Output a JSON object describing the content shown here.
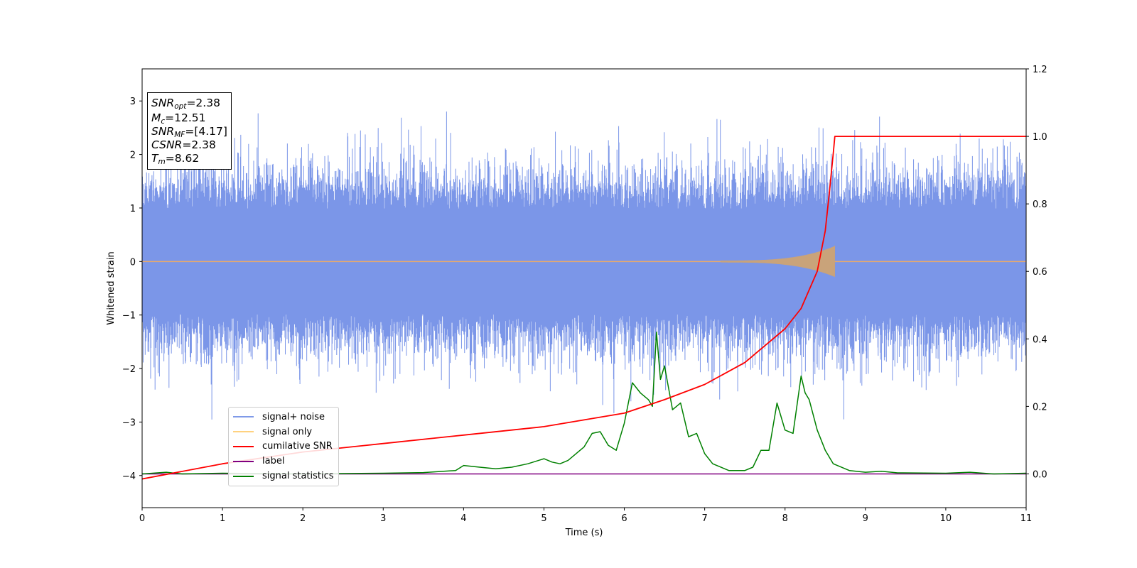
{
  "chart_data": {
    "type": "line",
    "xlabel": "Time (s)",
    "ylabel": "Whitened strain",
    "xlim": [
      0,
      11
    ],
    "ylim_left": [
      -4.6,
      3.6
    ],
    "ylim_right": [
      -0.1,
      1.2
    ],
    "x_ticks": [
      "0",
      "1",
      "2",
      "3",
      "4",
      "5",
      "6",
      "7",
      "8",
      "9",
      "10",
      "11"
    ],
    "y_ticks_left": [
      "3",
      "2",
      "1",
      "0",
      "−1",
      "−2",
      "−3",
      "−4"
    ],
    "y_ticks_right": [
      "1.2",
      "1.0",
      "0.8",
      "0.6",
      "0.4",
      "0.2",
      "0.0"
    ],
    "annotations": {
      "snr_opt": "=2.38",
      "mc": "=12.51",
      "snr_mf": "=[4.17]",
      "csnr": "=2.38",
      "tm": "=8.62"
    },
    "series": [
      {
        "name": "signal+ noise",
        "axis": "left",
        "color": "#4169e1",
        "description_type": "noise",
        "typical_amplitude": 1.6,
        "peak_max": 3.1,
        "peak_min": -3.25
      },
      {
        "name": "signal only",
        "axis": "left",
        "color": "#ffa500",
        "chirp_end": 8.62,
        "max_amplitude": 0.3
      },
      {
        "name": "cumilative SNR",
        "axis": "right",
        "color": "#ff0000",
        "x": [
          0,
          1,
          2,
          3,
          4,
          5,
          5.5,
          6,
          6.5,
          7,
          7.5,
          8,
          8.2,
          8.4,
          8.5,
          8.55,
          8.6,
          8.62,
          9,
          10,
          11
        ],
        "values": [
          -0.015,
          0.03,
          0.065,
          0.09,
          0.115,
          0.14,
          0.16,
          0.18,
          0.22,
          0.265,
          0.33,
          0.43,
          0.49,
          0.6,
          0.72,
          0.83,
          0.95,
          1.0,
          1.0,
          1.0,
          1.0
        ]
      },
      {
        "name": "label",
        "axis": "right",
        "color": "#800080",
        "x": [
          0,
          11
        ],
        "values": [
          0,
          0
        ]
      },
      {
        "name": "signal statistics",
        "axis": "right",
        "color": "#008000",
        "x": [
          0,
          0.3,
          0.5,
          1,
          2,
          3,
          3.5,
          3.9,
          4.0,
          4.2,
          4.4,
          4.6,
          4.8,
          5.0,
          5.1,
          5.2,
          5.3,
          5.4,
          5.5,
          5.6,
          5.7,
          5.8,
          5.9,
          6.0,
          6.1,
          6.2,
          6.3,
          6.35,
          6.4,
          6.45,
          6.5,
          6.6,
          6.7,
          6.8,
          6.9,
          7.0,
          7.1,
          7.3,
          7.5,
          7.6,
          7.7,
          7.8,
          7.9,
          8.0,
          8.1,
          8.2,
          8.25,
          8.3,
          8.4,
          8.5,
          8.6,
          8.8,
          9.0,
          9.2,
          9.4,
          10,
          10.3,
          10.6,
          11
        ],
        "values": [
          0,
          0.005,
          0.0,
          0.002,
          0.0,
          0.002,
          0.004,
          0.01,
          0.025,
          0.02,
          0.015,
          0.02,
          0.03,
          0.045,
          0.035,
          0.03,
          0.04,
          0.06,
          0.08,
          0.12,
          0.125,
          0.085,
          0.07,
          0.15,
          0.27,
          0.24,
          0.22,
          0.2,
          0.42,
          0.28,
          0.32,
          0.19,
          0.21,
          0.11,
          0.12,
          0.06,
          0.03,
          0.01,
          0.01,
          0.02,
          0.07,
          0.07,
          0.21,
          0.13,
          0.12,
          0.29,
          0.24,
          0.22,
          0.13,
          0.07,
          0.03,
          0.01,
          0.005,
          0.008,
          0.003,
          0.002,
          0.005,
          0.0,
          0.002
        ]
      }
    ],
    "legend_position": "lower-left"
  }
}
